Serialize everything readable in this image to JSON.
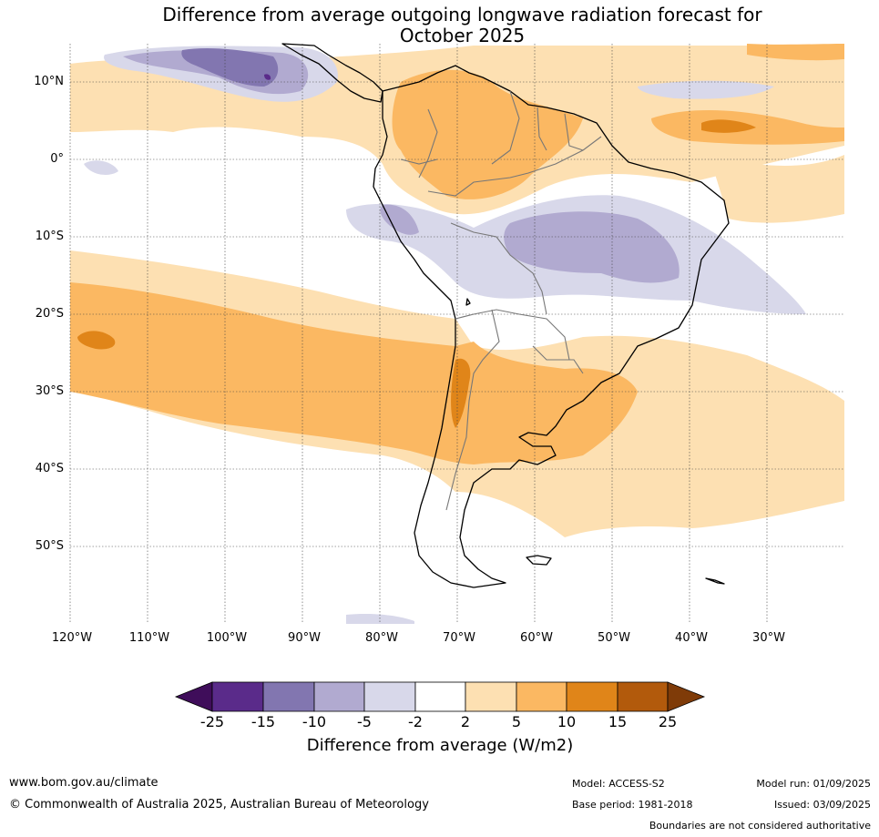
{
  "title": {
    "line1": "Difference from average outgoing longwave radiation forecast for",
    "line2": "October 2025"
  },
  "map": {
    "lat_labels": [
      "10°N",
      "0°",
      "10°S",
      "20°S",
      "30°S",
      "40°S",
      "50°S"
    ],
    "lon_labels": [
      "120°W",
      "110°W",
      "100°W",
      "90°W",
      "80°W",
      "70°W",
      "60°W",
      "50°W",
      "40°W",
      "30°W"
    ]
  },
  "colorbar": {
    "ticks": [
      "-25",
      "-15",
      "-10",
      "-5",
      "-2",
      "2",
      "5",
      "10",
      "15",
      "25"
    ],
    "colors": [
      "#3f0d5a",
      "#5a2b8a",
      "#8276b0",
      "#b1aad0",
      "#d8d8ea",
      "#ffffff",
      "#fde0b2",
      "#fbb862",
      "#e08519",
      "#b25a0c",
      "#7f3b08"
    ],
    "label": "Difference from average (W/m2)"
  },
  "footer": {
    "website": "www.bom.gov.au/climate",
    "copyright": "© Commonwealth of Australia 2025, Australian Bureau of Meteorology",
    "model": "Model: ACCESS-S2",
    "base_period": "Base period: 1981-2018",
    "model_run": "Model run: 01/09/2025",
    "issued": "Issued: 03/09/2025",
    "disclaimer": "Boundaries are not considered authoritative"
  }
}
